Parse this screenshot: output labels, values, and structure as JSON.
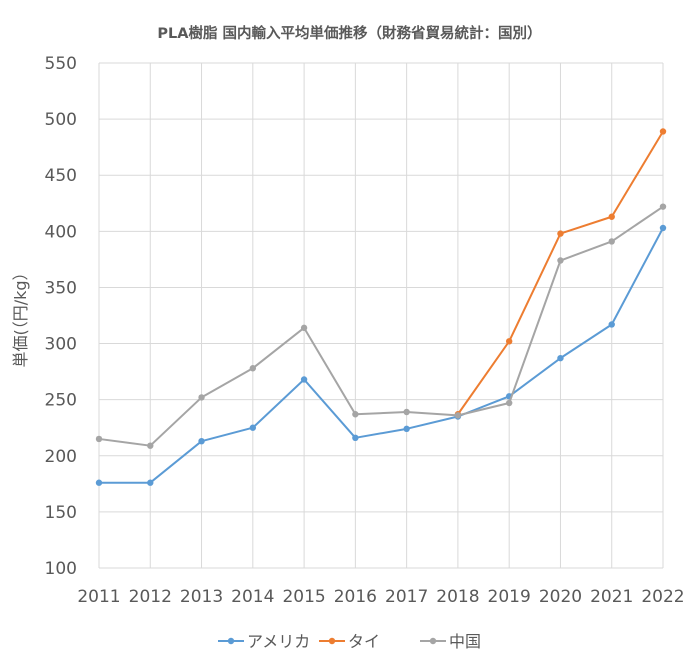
{
  "chart_data": {
    "type": "line",
    "title": "PLA樹脂 国内輸入平均単価推移（財務省貿易統計：国別）",
    "xlabel": "",
    "ylabel": "単価(（円/kg）",
    "ylim": [
      100,
      550
    ],
    "yticks": [
      100,
      150,
      200,
      250,
      300,
      350,
      400,
      450,
      500,
      550
    ],
    "x": [
      "2011",
      "2012",
      "2013",
      "2014",
      "2015",
      "2016",
      "2017",
      "2018",
      "2019",
      "2020",
      "2021",
      "2022"
    ],
    "grid": true,
    "legend_position": "bottom",
    "series": [
      {
        "name": "アメリカ",
        "color": "#5b9bd5",
        "values": [
          176,
          176,
          213,
          225,
          268,
          216,
          224,
          235,
          253,
          287,
          317,
          403
        ]
      },
      {
        "name": "タイ",
        "color": "#ed7d31",
        "values": [
          null,
          null,
          null,
          null,
          null,
          null,
          null,
          237,
          302,
          398,
          413,
          489
        ]
      },
      {
        "name": "中国",
        "color": "#a5a5a5",
        "values": [
          215,
          209,
          252,
          278,
          314,
          237,
          239,
          236,
          247,
          374,
          391,
          422
        ]
      }
    ]
  }
}
